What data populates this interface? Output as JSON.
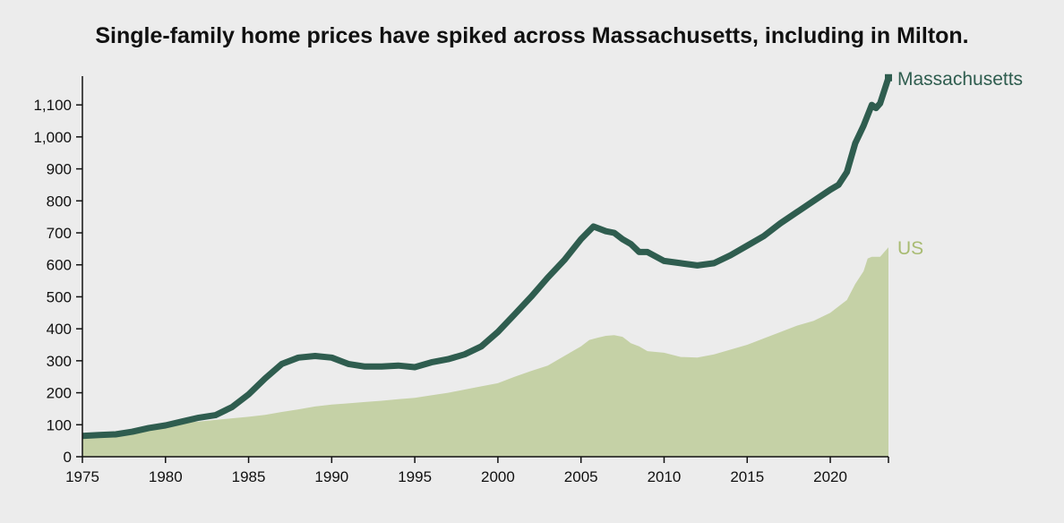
{
  "chart_data": {
    "type": "area",
    "title": "Single-family home prices have spiked across Massachusetts, including in Milton.",
    "xlim": [
      1975,
      2023.5
    ],
    "ylim": [
      0,
      1190
    ],
    "yticks": [
      0,
      100,
      200,
      300,
      400,
      500,
      600,
      700,
      800,
      900,
      1000,
      1100
    ],
    "ytick_labels": [
      "0",
      "100",
      "200",
      "300",
      "400",
      "500",
      "600",
      "700",
      "800",
      "900",
      "1,000",
      "1,100"
    ],
    "xticks": [
      1975,
      1980,
      1985,
      1990,
      1995,
      2000,
      2005,
      2010,
      2015,
      2020
    ],
    "xtick_labels": [
      "1975",
      "1980",
      "1985",
      "1990",
      "1995",
      "2000",
      "2005",
      "2010",
      "2015",
      "2020"
    ],
    "grid": false,
    "legend": "direct labels at right end of each series",
    "series": [
      {
        "name": "Massachusetts",
        "style": "line",
        "color": "#2f5d4f",
        "x": [
          1975,
          1976,
          1977,
          1978,
          1979,
          1980,
          1981,
          1982,
          1983,
          1984,
          1985,
          1986,
          1987,
          1988,
          1989,
          1990,
          1991,
          1992,
          1993,
          1994,
          1995,
          1996,
          1997,
          1998,
          1999,
          2000,
          2001,
          2002,
          2003,
          2004,
          2005,
          2005.75,
          2006.5,
          2007,
          2007.5,
          2008,
          2008.5,
          2009,
          2010,
          2011,
          2012,
          2013,
          2014,
          2015,
          2016,
          2017,
          2018,
          2019,
          2020,
          2020.5,
          2021,
          2021.5,
          2022,
          2022.5,
          2022.75,
          2023,
          2023.5
        ],
        "values": [
          65,
          68,
          70,
          78,
          90,
          98,
          110,
          122,
          130,
          155,
          195,
          245,
          290,
          310,
          315,
          310,
          290,
          282,
          282,
          285,
          280,
          295,
          305,
          320,
          345,
          390,
          445,
          500,
          560,
          615,
          680,
          720,
          705,
          700,
          680,
          665,
          640,
          640,
          612,
          605,
          598,
          605,
          630,
          660,
          690,
          730,
          765,
          800,
          835,
          850,
          890,
          980,
          1035,
          1100,
          1090,
          1105,
          1185
        ]
      },
      {
        "name": "US",
        "style": "area",
        "color": "#c5d1a6",
        "label_color": "#a8bb72",
        "x": [
          1975,
          1976,
          1977,
          1978,
          1979,
          1980,
          1981,
          1982,
          1983,
          1984,
          1985,
          1986,
          1987,
          1988,
          1989,
          1990,
          1991,
          1992,
          1993,
          1994,
          1995,
          1996,
          1997,
          1998,
          1999,
          2000,
          2001,
          2002,
          2003,
          2004,
          2005,
          2005.5,
          2006,
          2006.5,
          2007,
          2007.5,
          2008,
          2008.5,
          2009,
          2010,
          2011,
          2012,
          2013,
          2014,
          2015,
          2016,
          2017,
          2018,
          2019,
          2020,
          2020.5,
          2021,
          2021.5,
          2022,
          2022.25,
          2022.5,
          2023,
          2023.5
        ],
        "values": [
          58,
          66,
          75,
          85,
          95,
          103,
          107,
          110,
          115,
          120,
          125,
          131,
          140,
          148,
          157,
          163,
          167,
          171,
          175,
          180,
          184,
          192,
          200,
          210,
          220,
          230,
          250,
          268,
          285,
          315,
          345,
          365,
          372,
          378,
          380,
          375,
          355,
          345,
          330,
          325,
          312,
          310,
          320,
          335,
          350,
          370,
          390,
          410,
          425,
          450,
          470,
          490,
          540,
          580,
          620,
          625,
          625,
          655
        ]
      }
    ]
  }
}
